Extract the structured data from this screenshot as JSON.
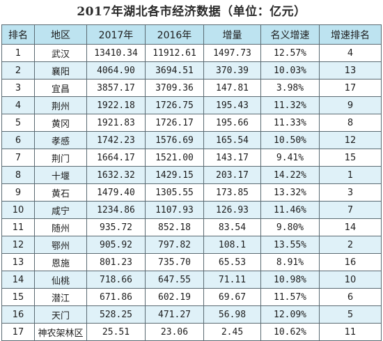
{
  "title": "2017年湖北各市经济数据（单位：亿元）",
  "headers": [
    "排名",
    "地区",
    "2017年",
    "2016年",
    "增量",
    "名义增速",
    "增速排名"
  ],
  "rows": [
    [
      "1",
      "武汉",
      "13410.34",
      "11912.61",
      "1497.73",
      "12.57%",
      "4"
    ],
    [
      "2",
      "襄阳",
      "4064.90",
      "3694.51",
      "370.39",
      "10.03%",
      "13"
    ],
    [
      "3",
      "宜昌",
      "3857.17",
      "3709.36",
      "147.81",
      "3.98%",
      "17"
    ],
    [
      "4",
      "荆州",
      "1922.18",
      "1726.75",
      "195.43",
      "11.32%",
      "9"
    ],
    [
      "5",
      "黄冈",
      "1921.83",
      "1726.17",
      "195.66",
      "11.33%",
      "8"
    ],
    [
      "6",
      "孝感",
      "1742.23",
      "1576.69",
      "165.54",
      "10.50%",
      "12"
    ],
    [
      "7",
      "荆门",
      "1664.17",
      "1521.00",
      "143.17",
      "9.41%",
      "15"
    ],
    [
      "8",
      "十堰",
      "1632.32",
      "1429.15",
      "203.17",
      "14.22%",
      "1"
    ],
    [
      "9",
      "黄石",
      "1479.40",
      "1305.55",
      "173.85",
      "13.32%",
      "3"
    ],
    [
      "10",
      "咸宁",
      "1234.86",
      "1107.93",
      "126.93",
      "11.46%",
      "7"
    ],
    [
      "11",
      "随州",
      "935.72",
      "852.18",
      "83.54",
      "9.80%",
      "14"
    ],
    [
      "12",
      "鄂州",
      "905.92",
      "797.82",
      "108.1",
      "13.55%",
      "2"
    ],
    [
      "13",
      "恩施",
      "801.23",
      "735.70",
      "65.53",
      "8.91%",
      "16"
    ],
    [
      "14",
      "仙桃",
      "718.66",
      "647.55",
      "71.11",
      "10.98%",
      "10"
    ],
    [
      "15",
      "潜江",
      "671.86",
      "602.19",
      "69.67",
      "11.57%",
      "6"
    ],
    [
      "16",
      "天门",
      "528.25",
      "471.27",
      "56.98",
      "12.09%",
      "5"
    ],
    [
      "17",
      "神农架林区",
      "25.51",
      "23.06",
      "2.45",
      "10.62%",
      "11"
    ]
  ],
  "colors": {
    "header_bg": "#bde3f0",
    "row_alt_bg": "#dff1f8",
    "row_bg": "#ffffff",
    "border": "#5a6a72"
  }
}
